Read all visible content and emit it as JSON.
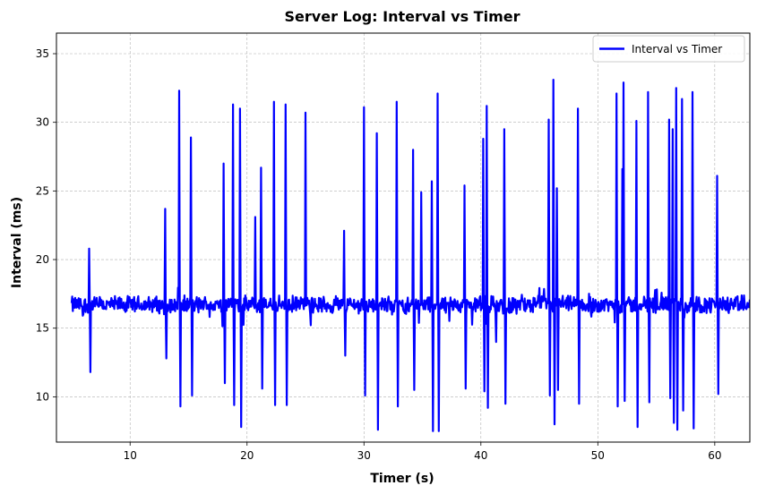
{
  "chart_data": {
    "type": "line",
    "title": "Server Log: Interval vs Timer",
    "xlabel": "Timer (s)",
    "ylabel": "Interval (ms)",
    "xlim": [
      3.7,
      63
    ],
    "ylim": [
      6.7,
      36.5
    ],
    "xticks": [
      10,
      20,
      30,
      40,
      50,
      60
    ],
    "yticks": [
      10,
      15,
      20,
      25,
      30,
      35
    ],
    "grid": true,
    "legend": {
      "position": "top-right",
      "entries": [
        "Interval vs Timer"
      ]
    },
    "color": "#0000ff",
    "baseline": 16.7,
    "noise_amplitude": 0.75,
    "x_start": 5.0,
    "x_end": 63.0,
    "series": [
      {
        "name": "Interval vs Timer",
        "spikes": [
          [
            6.5,
            20.8
          ],
          [
            6.6,
            11.8
          ],
          [
            13.0,
            23.7
          ],
          [
            13.1,
            12.8
          ],
          [
            14.2,
            32.3
          ],
          [
            14.3,
            9.3
          ],
          [
            15.2,
            28.9
          ],
          [
            15.3,
            10.1
          ],
          [
            18.0,
            27.0
          ],
          [
            18.1,
            11.0
          ],
          [
            18.8,
            31.3
          ],
          [
            18.9,
            9.4
          ],
          [
            19.4,
            31.0
          ],
          [
            19.5,
            7.8
          ],
          [
            20.7,
            23.1
          ],
          [
            21.2,
            26.7
          ],
          [
            21.3,
            10.6
          ],
          [
            22.3,
            31.5
          ],
          [
            22.4,
            9.4
          ],
          [
            23.3,
            31.3
          ],
          [
            23.4,
            9.4
          ],
          [
            25.0,
            30.7
          ],
          [
            28.3,
            22.1
          ],
          [
            28.4,
            13.0
          ],
          [
            30.0,
            31.1
          ],
          [
            30.1,
            10.1
          ],
          [
            31.1,
            29.2
          ],
          [
            31.2,
            7.6
          ],
          [
            32.8,
            31.5
          ],
          [
            32.9,
            9.3
          ],
          [
            34.2,
            28.0
          ],
          [
            34.3,
            10.5
          ],
          [
            34.9,
            24.9
          ],
          [
            35.8,
            25.7
          ],
          [
            35.9,
            7.5
          ],
          [
            36.3,
            32.1
          ],
          [
            36.4,
            7.5
          ],
          [
            38.6,
            25.4
          ],
          [
            38.7,
            10.6
          ],
          [
            40.2,
            28.8
          ],
          [
            40.3,
            10.4
          ],
          [
            40.5,
            31.2
          ],
          [
            40.6,
            9.2
          ],
          [
            41.3,
            14.0
          ],
          [
            42.0,
            29.5
          ],
          [
            42.1,
            9.5
          ],
          [
            45.8,
            30.2
          ],
          [
            45.9,
            10.1
          ],
          [
            46.2,
            33.1
          ],
          [
            46.3,
            8.0
          ],
          [
            46.5,
            25.2
          ],
          [
            46.6,
            10.5
          ],
          [
            48.3,
            31.0
          ],
          [
            48.4,
            9.5
          ],
          [
            51.6,
            32.1
          ],
          [
            51.7,
            9.3
          ],
          [
            52.1,
            26.6
          ],
          [
            52.2,
            32.9
          ],
          [
            52.3,
            9.7
          ],
          [
            53.3,
            30.1
          ],
          [
            53.4,
            7.8
          ],
          [
            54.3,
            32.2
          ],
          [
            54.4,
            9.6
          ],
          [
            56.1,
            30.2
          ],
          [
            56.2,
            9.9
          ],
          [
            56.4,
            29.5
          ],
          [
            56.5,
            8.1
          ],
          [
            56.7,
            32.5
          ],
          [
            56.8,
            7.6
          ],
          [
            57.2,
            31.7
          ],
          [
            57.3,
            9.0
          ],
          [
            58.1,
            32.2
          ],
          [
            58.2,
            7.7
          ],
          [
            60.2,
            26.1
          ],
          [
            60.3,
            10.2
          ]
        ]
      }
    ]
  }
}
